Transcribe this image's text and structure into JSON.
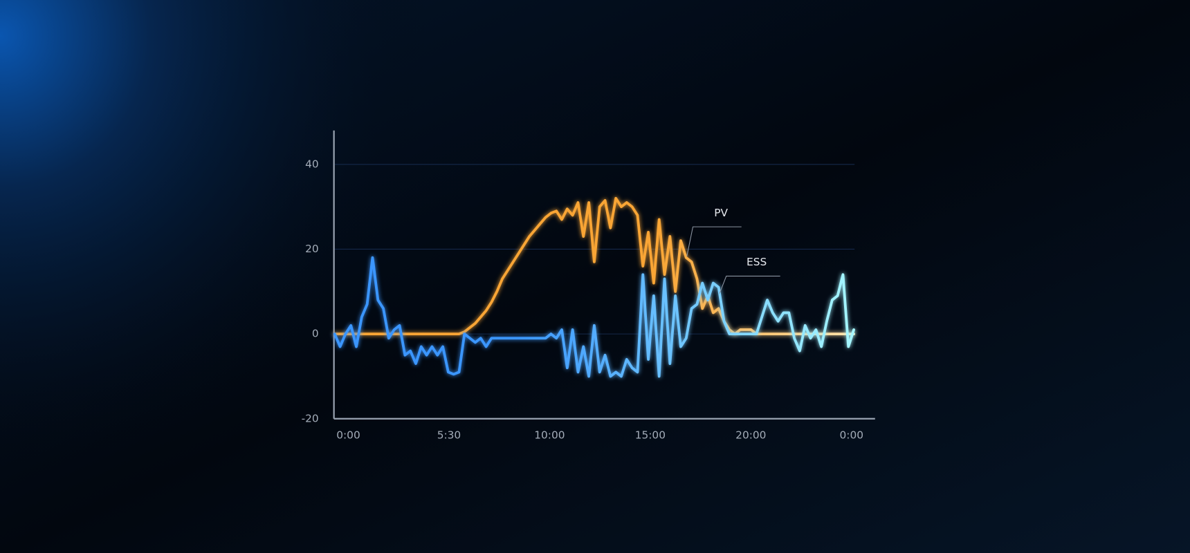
{
  "chart_data": {
    "type": "line",
    "ylim": [
      -20,
      48
    ],
    "yticks": [
      -20,
      0,
      20,
      40
    ],
    "grid": true,
    "xticklabels": [
      "0:00",
      "5:30",
      "10:00",
      "15:00",
      "20:00",
      "0:00"
    ],
    "series": [
      {
        "name": "PV",
        "color": "#f9a534",
        "color_end": "#ffe3ac",
        "values": [
          0,
          0,
          0,
          0,
          0,
          0,
          0,
          0,
          0,
          0,
          0,
          0,
          0,
          0,
          0,
          0,
          0,
          0,
          0,
          0,
          0,
          0,
          0,
          0,
          0.5,
          1.5,
          2.5,
          4,
          5.5,
          7.5,
          10,
          13,
          15,
          17,
          19,
          21,
          23,
          24.5,
          26,
          27.5,
          28.5,
          29,
          27,
          29.5,
          28,
          31,
          23,
          31,
          17,
          30,
          31.5,
          25,
          32,
          30,
          31,
          30,
          28,
          16,
          24,
          12,
          27,
          14,
          23,
          10,
          22,
          18,
          17,
          13,
          6,
          9,
          5,
          6,
          3,
          1,
          0,
          1,
          1,
          1,
          0,
          0,
          0,
          0,
          0,
          0,
          0,
          0,
          0,
          0,
          0,
          0,
          0,
          0,
          0,
          0,
          0,
          0,
          0
        ]
      },
      {
        "name": "ESS",
        "color": "#3a96ff",
        "color_end": "#a6f7ff",
        "values": [
          0,
          -3,
          0,
          2,
          -3,
          4,
          7,
          18,
          8,
          6,
          -1,
          1,
          2,
          -5,
          -4,
          -7,
          -3,
          -5,
          -3,
          -5,
          -3,
          -9,
          -9.5,
          -9,
          0,
          -1,
          -2,
          -1,
          -3,
          -1,
          -1,
          -1,
          -1,
          -1,
          -1,
          -1,
          -1,
          -1,
          -1,
          -1,
          0,
          -1,
          1,
          -8,
          1,
          -9,
          -3,
          -10,
          2,
          -9,
          -5,
          -10,
          -9,
          -10,
          -6,
          -8,
          -9,
          14,
          -6,
          9,
          -10,
          13,
          -7,
          9,
          -3,
          -1,
          6,
          7,
          12,
          8,
          12,
          11,
          3,
          0,
          0,
          0,
          0,
          0,
          0,
          4,
          8,
          5,
          3,
          5,
          5,
          -1,
          -4,
          2,
          -1,
          1,
          -3,
          3,
          8,
          9,
          14,
          -3,
          1
        ]
      }
    ]
  }
}
